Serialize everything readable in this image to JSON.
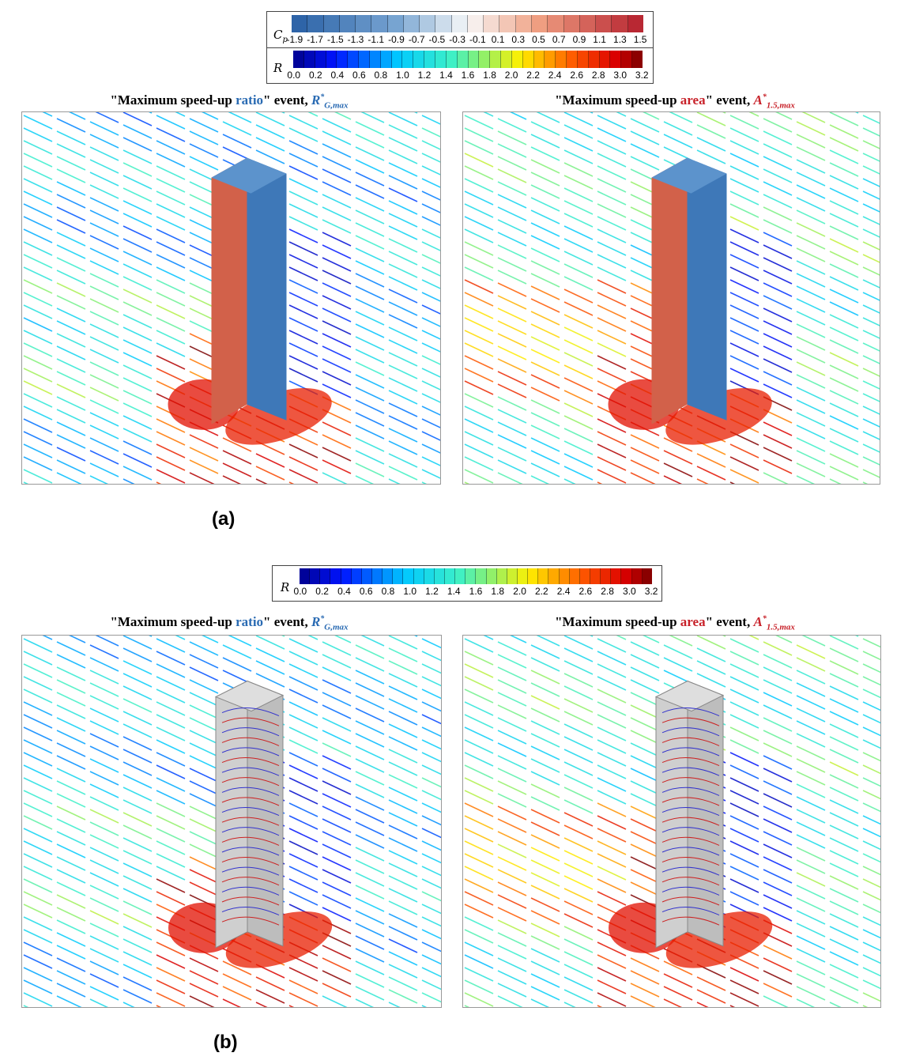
{
  "legend_a": {
    "cp_label": "C",
    "cp_sub": "p",
    "cp_ticks": [
      "-1.9",
      "-1.7",
      "-1.5",
      "-1.3",
      "-1.1",
      "-0.9",
      "-0.7",
      "-0.5",
      "-0.3",
      "-0.1",
      "0.1",
      "0.3",
      "0.5",
      "0.7",
      "0.9",
      "1.1",
      "1.3",
      "1.5"
    ],
    "r_label": "R",
    "r_ticks": [
      "0.0",
      "0.2",
      "0.4",
      "0.6",
      "0.8",
      "1.0",
      "1.2",
      "1.4",
      "1.6",
      "1.8",
      "2.0",
      "2.2",
      "2.4",
      "2.6",
      "2.8",
      "3.0",
      "3.2"
    ]
  },
  "legend_b": {
    "r_label": "R",
    "r_ticks": [
      "0.0",
      "0.2",
      "0.4",
      "0.6",
      "0.8",
      "1.0",
      "1.2",
      "1.4",
      "1.6",
      "1.8",
      "2.0",
      "2.2",
      "2.4",
      "2.6",
      "2.8",
      "3.0",
      "3.2"
    ]
  },
  "titles": {
    "ratio_pre": "\"Maximum speed-up ",
    "ratio_word": "ratio",
    "ratio_post": "\" event, ",
    "ratio_sym": "R",
    "ratio_sup": "*",
    "ratio_sub": "G,max",
    "area_pre": "\"Maximum speed-up ",
    "area_word": "area",
    "area_post": "\" event, ",
    "area_sym": "A",
    "area_sup": "*",
    "area_sub": "1.5,max"
  },
  "captions": {
    "a": "(a)",
    "b": "(b)"
  },
  "colors": {
    "ratio_word": "#2a6bb3",
    "area_word": "#c8222a"
  }
}
